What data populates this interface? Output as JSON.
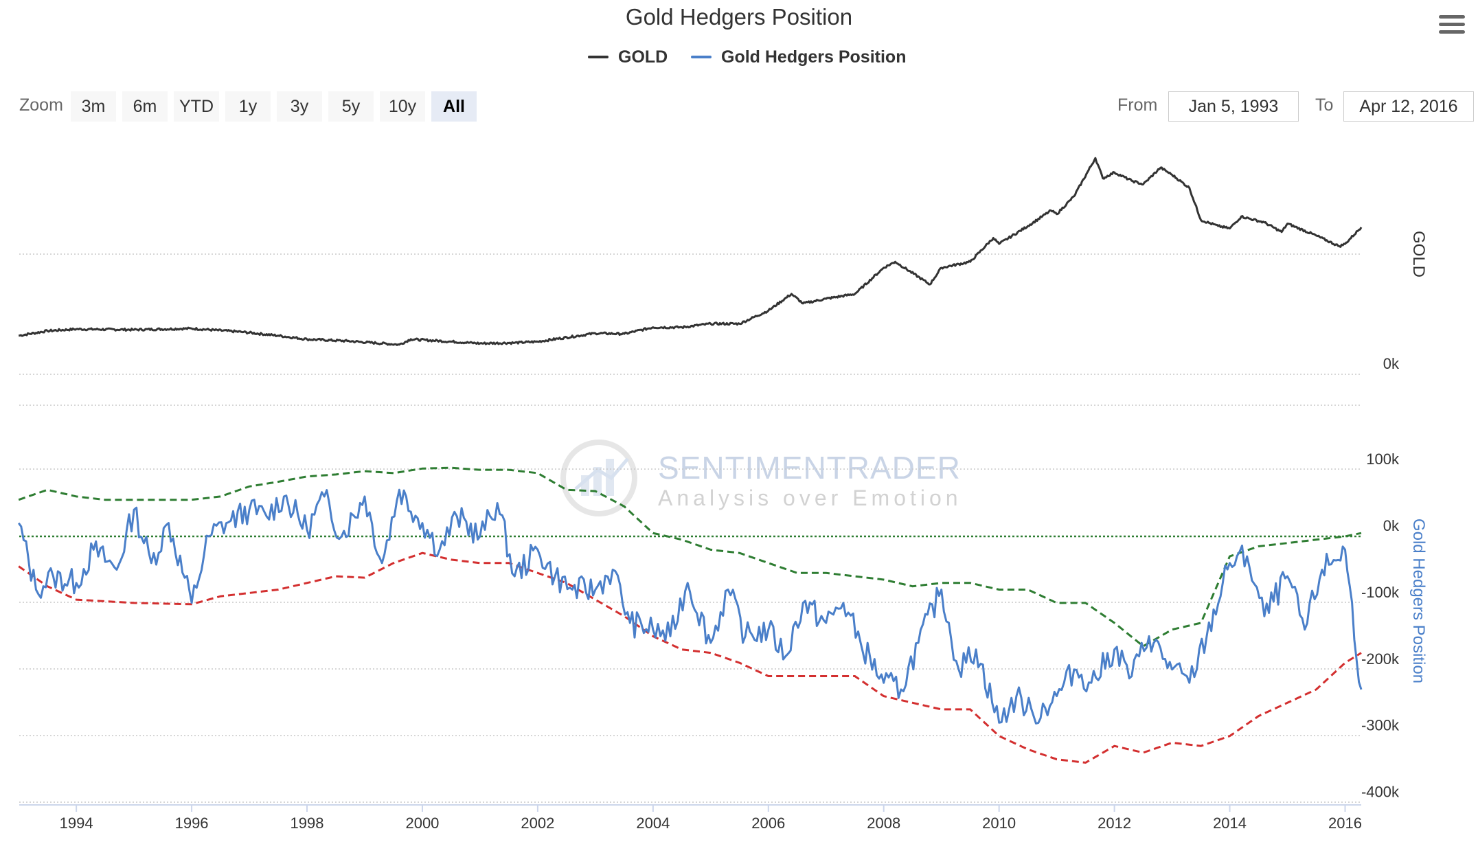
{
  "chart_data": {
    "type": "line",
    "title": "Gold Hedgers Position",
    "range_selector": {
      "zoom_label": "Zoom",
      "buttons": [
        "3m",
        "6m",
        "YTD",
        "1y",
        "3y",
        "5y",
        "10y",
        "All"
      ],
      "selected": "All",
      "from_label": "From",
      "from_value": "Jan 5, 1993",
      "to_label": "To",
      "to_value": "Apr 12, 2016"
    },
    "legend": {
      "position": "top-center",
      "items": [
        {
          "name": "GOLD",
          "color": "#333333"
        },
        {
          "name": "Gold Hedgers Position",
          "color": "#4a7fc9"
        }
      ]
    },
    "xaxis": {
      "type": "datetime",
      "range": [
        "1993-01-05",
        "2016-04-12"
      ],
      "ticks": [
        "1994",
        "1996",
        "1998",
        "2000",
        "2002",
        "2004",
        "2006",
        "2008",
        "2010",
        "2012",
        "2014",
        "2016"
      ]
    },
    "panes": [
      {
        "name": "GOLD",
        "ylabel": "GOLD",
        "yaxis_position": "right",
        "ylim": [
          0,
          2000
        ],
        "ticks": [
          "0k"
        ],
        "grid": true,
        "series": [
          {
            "name": "GOLD",
            "color": "#333333",
            "x": [
              1993.0,
              1993.5,
              1994.0,
              1995.0,
              1996.0,
              1996.9,
              1997.5,
              1998.0,
              1998.7,
              1999.6,
              1999.8,
              2000.5,
              2001.0,
              2001.6,
              2002.0,
              2003.0,
              2003.5,
              2004.0,
              2004.5,
              2005.0,
              2005.5,
              2006.0,
              2006.4,
              2006.6,
              2007.0,
              2007.5,
              2008.0,
              2008.2,
              2008.8,
              2009.0,
              2009.5,
              2009.9,
              2010.0,
              2010.5,
              2010.9,
              2011.0,
              2011.3,
              2011.67,
              2011.8,
              2012.0,
              2012.3,
              2012.5,
              2012.8,
              2013.0,
              2013.3,
              2013.5,
              2013.8,
              2014.0,
              2014.2,
              2014.6,
              2014.9,
              2015.0,
              2015.5,
              2015.9,
              2016.0,
              2016.28
            ],
            "values": [
              330,
              370,
              385,
              380,
              390,
              360,
              330,
              300,
              285,
              255,
              300,
              280,
              265,
              270,
              280,
              350,
              345,
              400,
              400,
              430,
              430,
              540,
              680,
              600,
              640,
              680,
              900,
              950,
              760,
              900,
              950,
              1150,
              1100,
              1250,
              1380,
              1350,
              1500,
              1820,
              1650,
              1700,
              1630,
              1600,
              1740,
              1680,
              1570,
              1300,
              1250,
              1230,
              1330,
              1280,
              1200,
              1270,
              1170,
              1080,
              1100,
              1240
            ]
          }
        ]
      },
      {
        "name": "Gold Hedgers Position",
        "ylabel": "Gold Hedgers Position",
        "yaxis_position": "right",
        "ylim": [
          -400000,
          100000
        ],
        "ticks": [
          "100k",
          "0k",
          "-100k",
          "-200k",
          "-300k",
          "-400k"
        ],
        "grid": true,
        "zero_line": {
          "value": 0,
          "color": "#2e7d32",
          "style": "dotted"
        },
        "series": [
          {
            "name": "Gold Hedgers Position",
            "color": "#4a7fc9",
            "x": [
              1993.0,
              1993.3,
              1993.6,
              1994.0,
              1994.3,
              1994.7,
              1995.0,
              1995.3,
              1995.6,
              1996.0,
              1996.3,
              1996.6,
              1997.0,
              1997.3,
              1997.6,
              1998.0,
              1998.3,
              1998.6,
              1999.0,
              1999.3,
              1999.6,
              2000.0,
              2000.3,
              2000.6,
              2001.0,
              2001.3,
              2001.6,
              2002.0,
              2002.3,
              2002.6,
              2003.0,
              2003.3,
              2003.6,
              2004.0,
              2004.3,
              2004.6,
              2005.0,
              2005.3,
              2005.6,
              2006.0,
              2006.3,
              2006.6,
              2007.0,
              2007.3,
              2007.6,
              2008.0,
              2008.3,
              2008.6,
              2009.0,
              2009.3,
              2009.6,
              2010.0,
              2010.3,
              2010.6,
              2011.0,
              2011.3,
              2011.6,
              2012.0,
              2012.3,
              2012.6,
              2013.0,
              2013.3,
              2013.6,
              2014.0,
              2014.3,
              2014.6,
              2015.0,
              2015.3,
              2015.6,
              2016.0,
              2016.28
            ],
            "values": [
              20000,
              -80000,
              -60000,
              -70000,
              -20000,
              -50000,
              40000,
              -40000,
              20000,
              -100000,
              0,
              20000,
              40000,
              30000,
              60000,
              10000,
              60000,
              0,
              60000,
              -40000,
              70000,
              20000,
              -20000,
              30000,
              0,
              50000,
              -60000,
              -20000,
              -60000,
              -80000,
              -80000,
              -50000,
              -130000,
              -140000,
              -150000,
              -70000,
              -160000,
              -80000,
              -150000,
              -140000,
              -180000,
              -100000,
              -130000,
              -100000,
              -160000,
              -220000,
              -230000,
              -160000,
              -80000,
              -200000,
              -170000,
              -280000,
              -240000,
              -270000,
              -240000,
              -200000,
              -220000,
              -170000,
              -210000,
              -150000,
              -200000,
              -220000,
              -150000,
              -40000,
              -30000,
              -120000,
              -60000,
              -140000,
              -50000,
              -20000,
              -230000
            ]
          },
          {
            "name": "Upper band",
            "color": "#2e7d32",
            "style": "dashed",
            "x": [
              1993.0,
              1993.5,
              1994.0,
              1994.5,
              1995.0,
              1996.0,
              1996.5,
              1997.0,
              1997.5,
              1998.0,
              1998.5,
              1999.0,
              1999.5,
              2000.0,
              2000.5,
              2001.0,
              2001.5,
              2002.0,
              2002.5,
              2003.0,
              2003.5,
              2004.0,
              2004.5,
              2005.0,
              2005.5,
              2006.0,
              2006.5,
              2007.0,
              2007.5,
              2008.0,
              2008.5,
              2009.0,
              2009.5,
              2010.0,
              2010.5,
              2011.0,
              2011.5,
              2012.0,
              2012.5,
              2013.0,
              2013.5,
              2013.8,
              2014.0,
              2014.5,
              2015.0,
              2015.5,
              2016.0,
              2016.28
            ],
            "values": [
              55000,
              70000,
              60000,
              55000,
              55000,
              55000,
              60000,
              75000,
              82000,
              90000,
              93000,
              98000,
              95000,
              102000,
              103000,
              100000,
              100000,
              95000,
              70000,
              68000,
              45000,
              5000,
              -5000,
              -20000,
              -25000,
              -40000,
              -55000,
              -55000,
              -60000,
              -65000,
              -75000,
              -70000,
              -70000,
              -80000,
              -80000,
              -100000,
              -100000,
              -130000,
              -165000,
              -140000,
              -130000,
              -70000,
              -30000,
              -15000,
              -10000,
              -5000,
              0,
              5000
            ]
          },
          {
            "name": "Lower band",
            "color": "#d32f2f",
            "style": "dashed",
            "x": [
              1993.0,
              1993.5,
              1994.0,
              1995.0,
              1996.0,
              1996.5,
              1997.0,
              1997.5,
              1998.0,
              1998.5,
              1999.0,
              1999.5,
              2000.0,
              2000.5,
              2001.0,
              2001.5,
              2002.0,
              2002.5,
              2003.0,
              2003.5,
              2004.0,
              2004.5,
              2005.0,
              2005.5,
              2006.0,
              2006.5,
              2007.0,
              2007.5,
              2008.0,
              2008.5,
              2009.0,
              2009.5,
              2010.0,
              2010.5,
              2011.0,
              2011.5,
              2012.0,
              2012.5,
              2013.0,
              2013.5,
              2014.0,
              2014.5,
              2015.0,
              2015.5,
              2016.0,
              2016.28
            ],
            "values": [
              -45000,
              -75000,
              -95000,
              -100000,
              -102000,
              -90000,
              -85000,
              -80000,
              -70000,
              -60000,
              -62000,
              -40000,
              -25000,
              -35000,
              -40000,
              -40000,
              -55000,
              -70000,
              -95000,
              -120000,
              -150000,
              -170000,
              -175000,
              -190000,
              -210000,
              -210000,
              -210000,
              -210000,
              -240000,
              -250000,
              -260000,
              -260000,
              -300000,
              -320000,
              -335000,
              -340000,
              -315000,
              -325000,
              -310000,
              -315000,
              -300000,
              -270000,
              -250000,
              -230000,
              -190000,
              -175000
            ]
          }
        ]
      }
    ],
    "watermark": {
      "title": "SENTIMENTRADER",
      "subtitle": "Analysis over Emotion"
    }
  }
}
